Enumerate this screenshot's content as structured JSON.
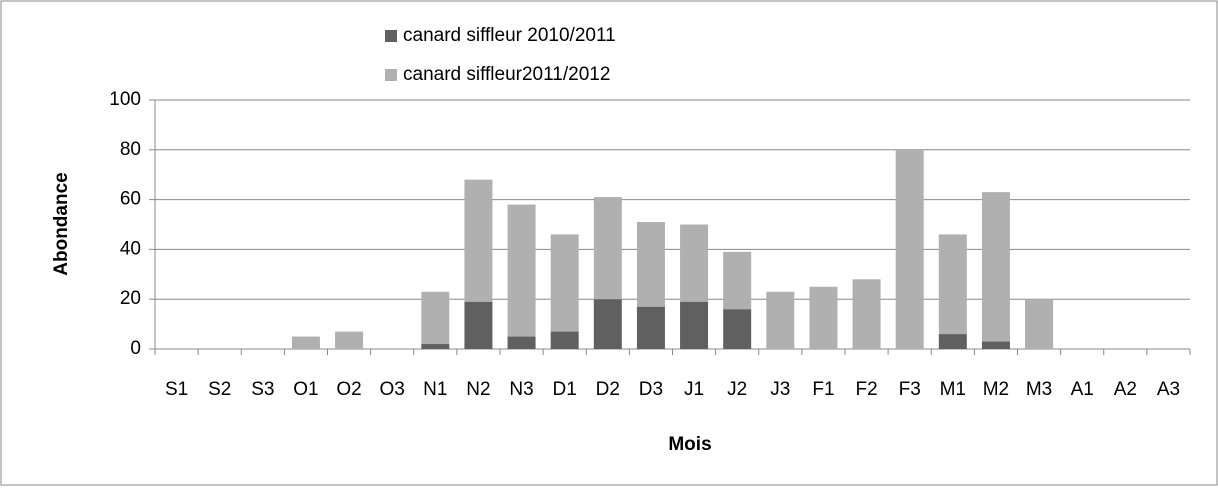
{
  "chart_data": {
    "type": "stacked_bar",
    "categories": [
      "S1",
      "S2",
      "S3",
      "O1",
      "O2",
      "O3",
      "N1",
      "N2",
      "N3",
      "D1",
      "D2",
      "D3",
      "J1",
      "J2",
      "J3",
      "F1",
      "F2",
      "F3",
      "M1",
      "M2",
      "M3",
      "A1",
      "A2",
      "A3"
    ],
    "series": [
      {
        "name": "canard siffleur 2010/2011",
        "color": "#606060",
        "values": [
          0,
          0,
          0,
          0,
          0,
          0,
          2,
          19,
          5,
          7,
          20,
          17,
          19,
          16,
          0,
          0,
          0,
          0,
          6,
          3,
          0,
          0,
          0,
          0
        ]
      },
      {
        "name": "canard siffleur2011/2012",
        "color": "#b0b0b0",
        "values": [
          0,
          0,
          0,
          5,
          7,
          0,
          21,
          49,
          53,
          39,
          41,
          34,
          31,
          23,
          23,
          25,
          28,
          80,
          40,
          60,
          20,
          0,
          0,
          0
        ]
      }
    ],
    "xlabel": "Mois",
    "ylabel": "Abondance",
    "ylim": [
      0,
      100
    ],
    "yticks": [
      0,
      20,
      40,
      60,
      80,
      100
    ],
    "grid": true
  }
}
